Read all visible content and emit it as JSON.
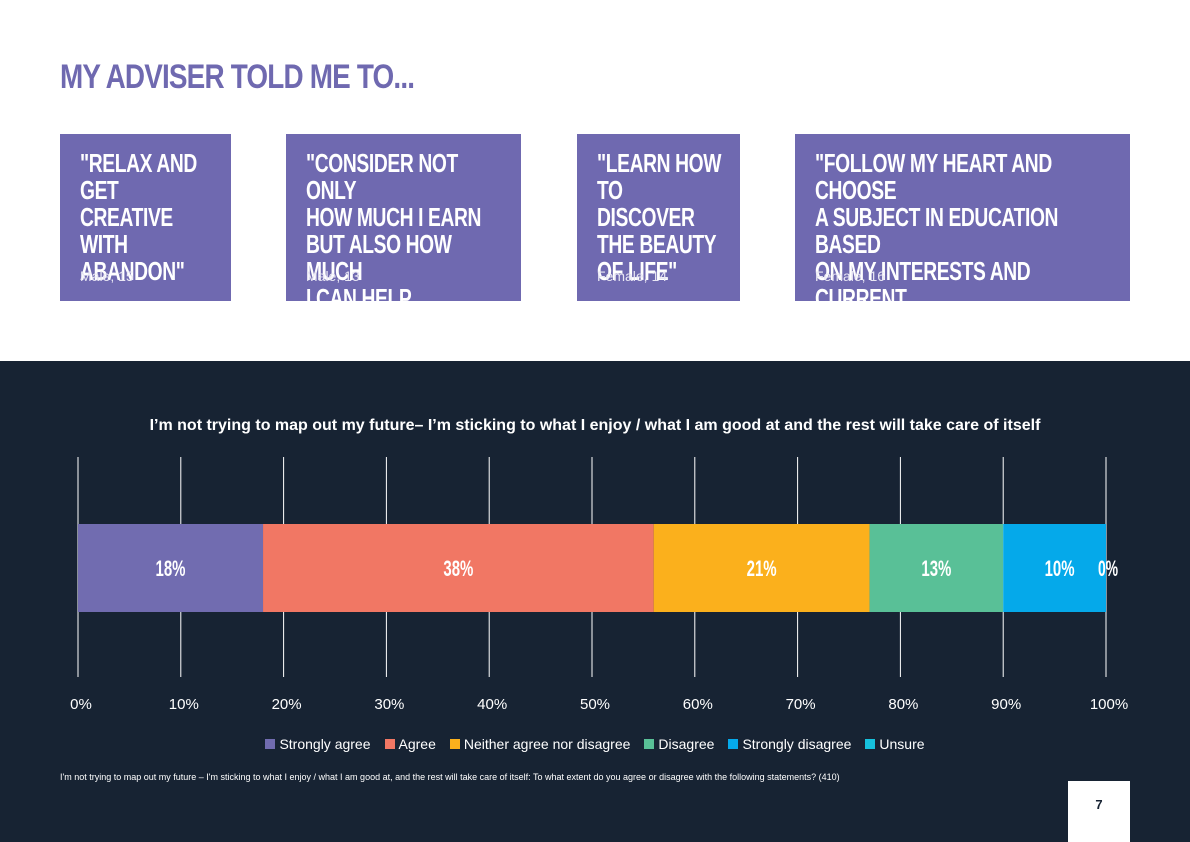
{
  "heading": "MY ADVISER TOLD ME TO...",
  "colors": {
    "heading": "#6F69B0",
    "card": "#6F69B0",
    "panel": "#172333",
    "strongly_agree": "#716CB0",
    "agree": "#F17764",
    "neither": "#FBB01C",
    "disagree": "#59C097",
    "strongly_disagree": "#05A9EA",
    "unsure": "#16C1DD"
  },
  "quotes": [
    {
      "text": "\"Relax and\nget creative\nwith\nabandon\"",
      "attribution": "Male, 15"
    },
    {
      "text": "\"Consider not only\nhow much  I earn\nbut also how much\nI can help others.\"",
      "attribution": "Male, 13"
    },
    {
      "text": "\"Learn how\nto discover\nthe beauty\nof life\"",
      "attribution": "Female, 14"
    },
    {
      "text": "\"Follow my heart and choose\na subject in education based\non my interests and current\nacademic achievements\"",
      "attribution": "Female, 16"
    }
  ],
  "chart_data": {
    "type": "bar",
    "orientation": "horizontal-stacked-100",
    "title": "I’m not trying to map out my future– I’m sticking to what I enjoy / what I am good at and the rest will take care of itself",
    "xlim": [
      0,
      100
    ],
    "x_ticks": [
      "0%",
      "10%",
      "20%",
      "30%",
      "40%",
      "50%",
      "60%",
      "70%",
      "80%",
      "90%",
      "100%"
    ],
    "grid": true,
    "legend_position": "bottom",
    "series": [
      {
        "name": "Strongly agree",
        "value": 18,
        "label": "18%"
      },
      {
        "name": "Agree",
        "value": 38,
        "label": "38%"
      },
      {
        "name": "Neither agree nor disagree",
        "value": 21,
        "label": "21%"
      },
      {
        "name": "Disagree",
        "value": 13,
        "label": "13%"
      },
      {
        "name": "Strongly disagree",
        "value": 10,
        "label": "10%"
      },
      {
        "name": "Unsure",
        "value": 0,
        "label": "0%"
      }
    ]
  },
  "footnote": "I'm not trying to map out my future – I'm sticking to what I enjoy / what I am good at, and the rest will take care of itself: To what extent do you agree or disagree with the following statements? (410)",
  "page_number": "7"
}
